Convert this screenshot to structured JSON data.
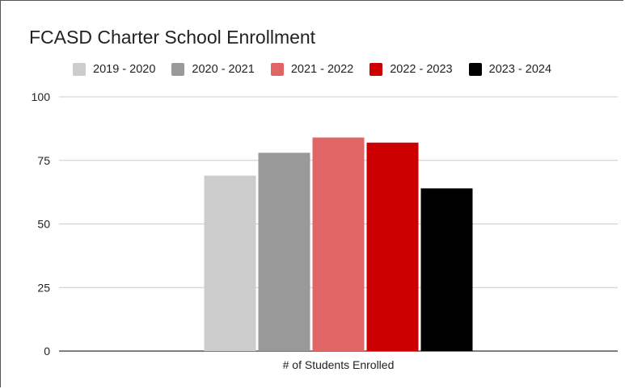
{
  "chart_data": {
    "type": "bar",
    "title": "FCASD Charter School Enrollment",
    "xlabel": "",
    "ylabel": "",
    "categories": [
      "# of Students Enrolled"
    ],
    "series": [
      {
        "name": "2019 - 2020",
        "values": [
          69
        ],
        "color": "#cccccc"
      },
      {
        "name": "2020 - 2021",
        "values": [
          78
        ],
        "color": "#999999"
      },
      {
        "name": "2021 - 2022",
        "values": [
          84
        ],
        "color": "#e06666"
      },
      {
        "name": "2022 - 2023",
        "values": [
          82
        ],
        "color": "#cc0000"
      },
      {
        "name": "2023 - 2024",
        "values": [
          64
        ],
        "color": "#000000"
      }
    ],
    "ylim": [
      0,
      100
    ],
    "yticks": [
      0,
      25,
      50,
      75,
      100
    ],
    "grid": true,
    "legend_position": "top"
  }
}
